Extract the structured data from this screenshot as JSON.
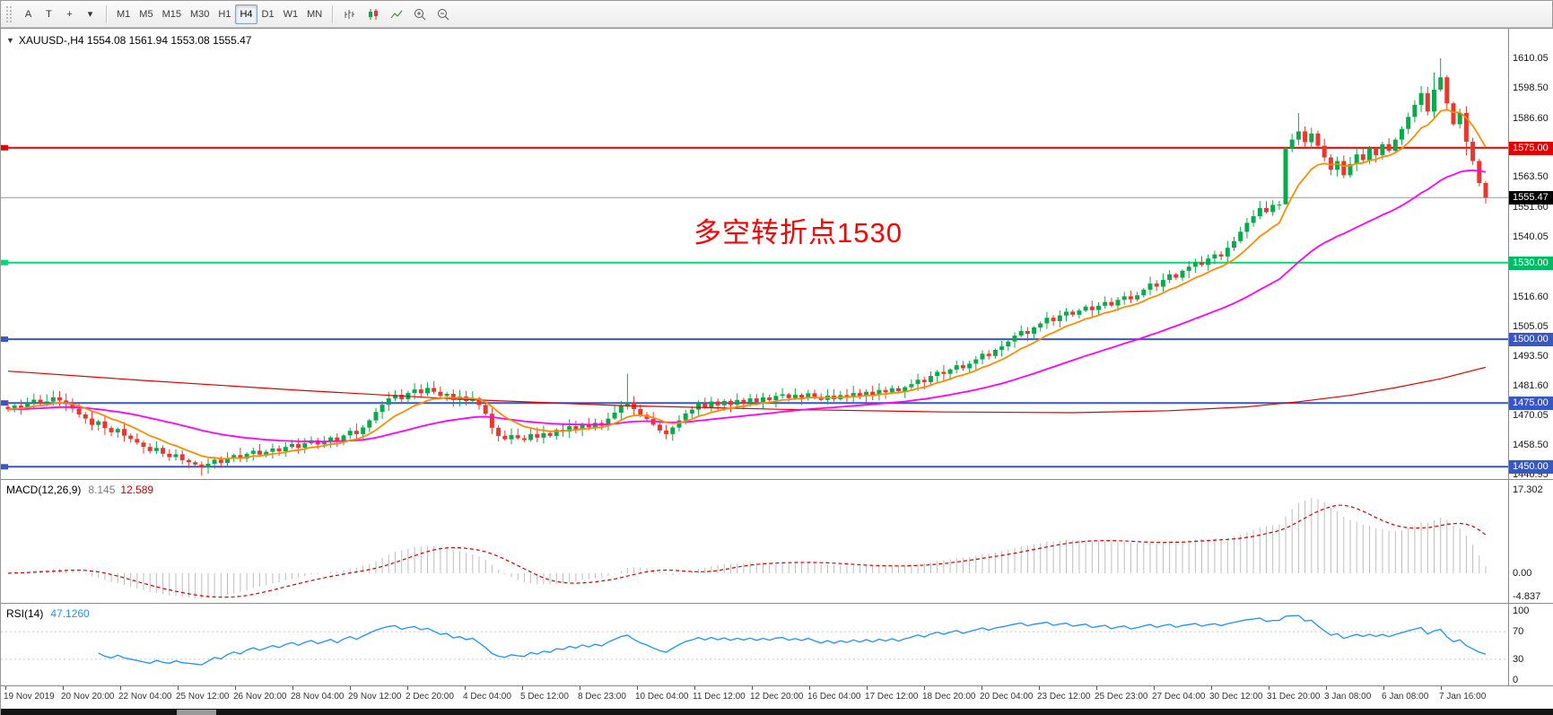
{
  "toolbar": {
    "tools": [
      {
        "name": "text-label-tool",
        "glyph": "A"
      },
      {
        "name": "text-tool",
        "glyph": "T"
      },
      {
        "name": "crosshair-tool",
        "glyph": "+"
      },
      {
        "name": "arrow-tools-dropdown",
        "glyph": "▾"
      }
    ],
    "timeframes": [
      "M1",
      "M5",
      "M15",
      "M30",
      "H1",
      "H4",
      "D1",
      "W1",
      "MN"
    ],
    "active_timeframe": "H4",
    "chart_buttons": [
      "bar-chart-icon",
      "candlestick-icon",
      "line-chart-icon",
      "zoom-in-icon",
      "zoom-out-icon"
    ]
  },
  "chart": {
    "title_line": "XAUUSD-,H4 1554.08 1561.94 1553.08 1555.47",
    "symbol": "XAUUSD-",
    "period": "H4",
    "ohlc": {
      "open": "1554.08",
      "high": "1561.94",
      "low": "1553.08",
      "close": "1555.47"
    },
    "annotation": {
      "text": "多空转折点1530",
      "color": "#ff0000"
    },
    "current_price": "1555.47",
    "hlines": [
      {
        "price": 1575.0,
        "label": "1575.00",
        "line": "#e00000",
        "badge": "#e00000",
        "w": 2,
        "marker": true
      },
      {
        "price": 1530.0,
        "label": "1530.00",
        "line": "#00d973",
        "badge": "#00bb63",
        "w": 2,
        "marker": true
      },
      {
        "price": 1500.0,
        "label": "1500.00",
        "line": "#3757c4",
        "badge": "#3757c4",
        "w": 2,
        "marker": true
      },
      {
        "price": 1475.0,
        "label": "1475.00",
        "line": "#3757c4",
        "badge": "#3757c4",
        "w": 2,
        "marker": true
      },
      {
        "price": 1450.0,
        "label": "1450.00",
        "line": "#3757c4",
        "badge": "#3757c4",
        "w": 2,
        "marker": true
      },
      {
        "price": 1555.47,
        "label": "1555.47",
        "line": "#999999",
        "badge": "#000000",
        "w": 1,
        "marker": false
      }
    ],
    "axis_ticks": [
      "1610.05",
      "1598.50",
      "1586.60",
      "1563.50",
      "1551.60",
      "1540.05",
      "1528.50",
      "1516.60",
      "1505.05",
      "1493.50",
      "1481.60",
      "1470.05",
      "1458.50",
      "1446.95"
    ]
  },
  "macd": {
    "label": "MACD(12,26,9)",
    "value_main": "8.145",
    "value_signal": "12.589",
    "scale": [
      "17.302",
      "0.00",
      "-4.837"
    ]
  },
  "rsi": {
    "label": "RSI(14)",
    "value": "47.1260",
    "scale": [
      "100",
      "70",
      "30",
      "0"
    ]
  },
  "time_axis": [
    "19 Nov 2019",
    "20 Nov 20:00",
    "22 Nov 04:00",
    "25 Nov 12:00",
    "26 Nov 20:00",
    "28 Nov 04:00",
    "29 Nov 12:00",
    "2 Dec 20:00",
    "4 Dec 04:00",
    "5 Dec 12:00",
    "8 Dec 23:00",
    "10 Dec 04:00",
    "11 Dec 12:00",
    "12 Dec 20:00",
    "16 Dec 04:00",
    "17 Dec 12:00",
    "18 Dec 20:00",
    "20 Dec 04:00",
    "23 Dec 12:00",
    "25 Dec 23:00",
    "27 Dec 04:00",
    "30 Dec 12:00",
    "31 Dec 20:00",
    "3 Jan 08:00",
    "6 Jan 08:00",
    "7 Jan 16:00"
  ],
  "chart_data": {
    "type": "candlestick",
    "symbol": "XAUUSD",
    "period": "H4",
    "title": "XAUUSD-,H4 1554.08 1561.94 1553.08 1555.47",
    "ylim": [
      1444.9,
      1621.65
    ],
    "grid": false,
    "closes": [
      1472.5,
      1474.0,
      1473.2,
      1475.1,
      1476.3,
      1474.8,
      1475.6,
      1477.2,
      1476.0,
      1474.5,
      1472.8,
      1470.5,
      1468.9,
      1466.4,
      1467.8,
      1465.2,
      1463.5,
      1464.8,
      1462.2,
      1460.9,
      1459.5,
      1457.8,
      1456.2,
      1457.4,
      1455.1,
      1453.8,
      1454.9,
      1452.6,
      1451.8,
      1450.9,
      1449.8,
      1451.2,
      1452.8,
      1451.5,
      1453.4,
      1454.6,
      1453.2,
      1455.1,
      1456.3,
      1454.8,
      1455.9,
      1457.2,
      1456.1,
      1457.8,
      1458.9,
      1457.5,
      1459.2,
      1460.4,
      1458.8,
      1460.1,
      1461.5,
      1459.8,
      1462.3,
      1464.1,
      1462.8,
      1465.4,
      1468.2,
      1471.5,
      1474.3,
      1476.8,
      1478.2,
      1476.5,
      1478.9,
      1480.3,
      1478.8,
      1480.9,
      1479.4,
      1477.8,
      1478.6,
      1476.2,
      1477.5,
      1475.8,
      1476.9,
      1474.2,
      1470.8,
      1465.3,
      1462.1,
      1460.8,
      1462.4,
      1461.2,
      1460.5,
      1462.8,
      1461.4,
      1463.2,
      1462.1,
      1464.5,
      1463.8,
      1465.9,
      1464.7,
      1466.8,
      1465.4,
      1467.2,
      1466.1,
      1468.9,
      1471.2,
      1473.8,
      1475.2,
      1472.6,
      1470.4,
      1468.8,
      1466.5,
      1464.2,
      1462.8,
      1465.4,
      1468.2,
      1470.9,
      1472.4,
      1474.8,
      1473.2,
      1475.6,
      1474.1,
      1475.8,
      1474.3,
      1476.2,
      1475.1,
      1476.8,
      1475.4,
      1477.2,
      1476.1,
      1477.8,
      1478.4,
      1476.9,
      1478.2,
      1477.1,
      1478.8,
      1477.4,
      1476.2,
      1477.9,
      1476.5,
      1478.1,
      1477.2,
      1478.9,
      1477.8,
      1479.4,
      1478.2,
      1480.1,
      1479.2,
      1480.8,
      1479.6,
      1481.2,
      1482.4,
      1484.1,
      1483.2,
      1485.6,
      1487.2,
      1486.4,
      1488.1,
      1489.8,
      1488.6,
      1490.4,
      1492.1,
      1494.3,
      1493.4,
      1495.8,
      1497.2,
      1499.1,
      1501.4,
      1503.2,
      1502.1,
      1504.6,
      1506.2,
      1508.4,
      1507.1,
      1509.3,
      1510.8,
      1509.6,
      1511.2,
      1512.8,
      1511.4,
      1513.1,
      1514.6,
      1513.2,
      1515.4,
      1516.8,
      1515.6,
      1517.2,
      1519.4,
      1521.8,
      1520.6,
      1523.2,
      1525.4,
      1524.1,
      1526.8,
      1528.4,
      1530.2,
      1529.1,
      1531.6,
      1533.2,
      1532.4,
      1535.8,
      1538.4,
      1542.1,
      1545.6,
      1548.2,
      1551.4,
      1549.8,
      1552.6,
      1552.8,
      1574.5,
      1578.2,
      1581.4,
      1577.2,
      1580.6,
      1575.8,
      1571.2,
      1566.4,
      1569.8,
      1564.2,
      1568.6,
      1572.4,
      1570.2,
      1574.6,
      1572.1,
      1576.4,
      1573.8,
      1578.2,
      1582.4,
      1587.1,
      1591.8,
      1596.4,
      1589.2,
      1597.8,
      1602.6,
      1592.4,
      1584.2,
      1588.6,
      1577.4,
      1569.8,
      1561.2,
      1555.47
    ],
    "wick_overrides": {
      "30": {
        "l": 1446.5
      },
      "78": {
        "l": 1458.8
      },
      "96": {
        "h": 1486.5
      },
      "198": {
        "l": 1558.0
      },
      "200": {
        "h": 1588.6
      },
      "219": {
        "h": 1599.2
      },
      "221": {
        "h": 1604.5
      },
      "222": {
        "h": 1610.05
      },
      "226": {
        "l": 1572.0
      },
      "229": {
        "l": 1553.08
      }
    },
    "ma_fast_period": 10,
    "ma_slow_period": 45,
    "ma_red": [
      [
        0,
        1487.5
      ],
      [
        20,
        1484
      ],
      [
        45,
        1480
      ],
      [
        70,
        1476.5
      ],
      [
        95,
        1474
      ],
      [
        120,
        1472.5
      ],
      [
        145,
        1471.5
      ],
      [
        165,
        1471.2
      ],
      [
        180,
        1472
      ],
      [
        192,
        1473.5
      ],
      [
        200,
        1475.5
      ],
      [
        208,
        1478
      ],
      [
        215,
        1481
      ],
      [
        222,
        1484.5
      ],
      [
        229,
        1489
      ]
    ],
    "macd_params": [
      12,
      26,
      9
    ],
    "macd_ylim": [
      -6.3,
      19.3
    ],
    "rsi_period": 14,
    "rsi_levels": [
      70,
      30
    ],
    "colors": {
      "up": "#0ba94c",
      "down": "#e6382c",
      "ma_fast": "#FF8C00",
      "ma_slow": "#FF00FF",
      "ma_long": "#e00000",
      "macd_hist": "#bdbdbd",
      "macd_signal": "#cc0000",
      "rsi_line": "#1E90FF"
    }
  }
}
